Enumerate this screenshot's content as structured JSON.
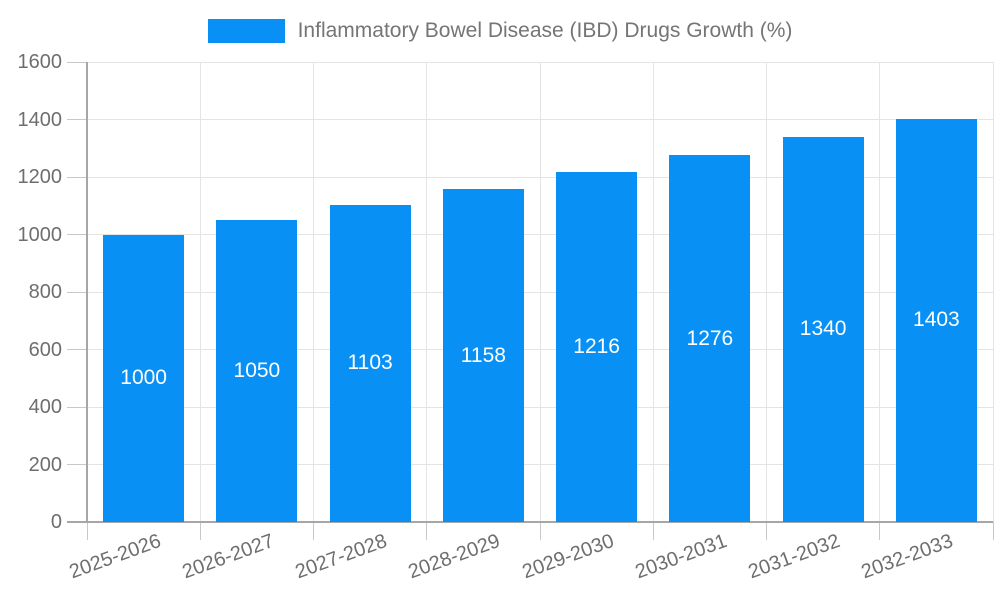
{
  "legend": {
    "label": "Inflammatory Bowel Disease (IBD) Drugs Growth (%)"
  },
  "colors": {
    "bar": "#0990F5",
    "bar_value_text": "#FFFFFF",
    "axis_line": "#A6A6A6",
    "grid_line": "#E4E4E4",
    "tick_line": "#C8C8C8",
    "axis_text": "#6E6E6E",
    "legend_text": "#757575",
    "background": "#FFFFFF"
  },
  "chart_data": {
    "type": "bar",
    "title": "Inflammatory Bowel Disease (IBD) Drugs Growth (%)",
    "categories": [
      "2025-2026",
      "2026-2027",
      "2027-2028",
      "2028-2029",
      "2029-2030",
      "2030-2031",
      "2031-2032",
      "2032-2033"
    ],
    "values": [
      1000,
      1050,
      1103,
      1158,
      1216,
      1276,
      1340,
      1403
    ],
    "xlabel": "",
    "ylabel": "",
    "ylim": [
      0,
      1600
    ],
    "ytick_interval": 200,
    "ytick_labels": [
      "0",
      "200",
      "400",
      "600",
      "800",
      "1000",
      "1200",
      "1400",
      "1600"
    ],
    "grid": true,
    "legend_position": "top",
    "value_labels": "inside-center",
    "x_label_rotation_deg": -20
  }
}
